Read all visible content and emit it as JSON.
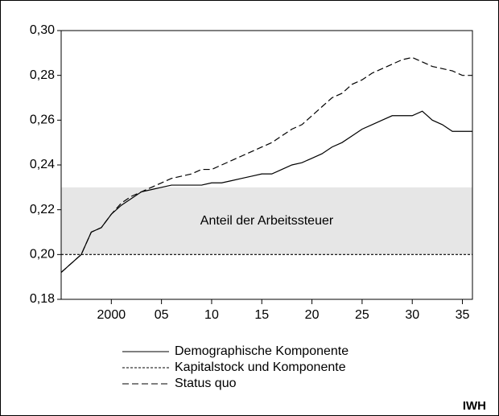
{
  "chart_data": {
    "type": "line",
    "x": [
      1995,
      1996,
      1997,
      1998,
      1999,
      2000,
      2001,
      2002,
      2003,
      2004,
      2005,
      2006,
      2007,
      2008,
      2009,
      2010,
      2011,
      2012,
      2013,
      2014,
      2015,
      2016,
      2017,
      2018,
      2019,
      2020,
      2021,
      2022,
      2023,
      2024,
      2025,
      2026,
      2027,
      2028,
      2029,
      2030,
      2031,
      2032,
      2033,
      2034,
      2035,
      2036
    ],
    "series": [
      {
        "name": "Demographische Komponente",
        "color": "#000000",
        "dash": "solid",
        "values": [
          0.192,
          0.196,
          0.2,
          0.21,
          0.212,
          0.218,
          0.222,
          0.225,
          0.228,
          0.229,
          0.23,
          0.231,
          0.231,
          0.231,
          0.231,
          0.232,
          0.232,
          0.233,
          0.234,
          0.235,
          0.236,
          0.236,
          0.238,
          0.24,
          0.241,
          0.243,
          0.245,
          0.248,
          0.25,
          0.253,
          0.256,
          0.258,
          0.26,
          0.262,
          0.262,
          0.262,
          0.264,
          0.26,
          0.258,
          0.255,
          0.255,
          0.255
        ]
      },
      {
        "name": "Kapitalstock und Komponente",
        "color": "#000000",
        "dash": "short",
        "values": [
          0.2,
          0.2,
          0.2,
          0.2,
          0.2,
          0.2,
          0.2,
          0.2,
          0.2,
          0.2,
          0.2,
          0.2,
          0.2,
          0.2,
          0.2,
          0.2,
          0.2,
          0.2,
          0.2,
          0.2,
          0.2,
          0.2,
          0.2,
          0.2,
          0.2,
          0.2,
          0.2,
          0.2,
          0.2,
          0.2,
          0.2,
          0.2,
          0.2,
          0.2,
          0.2,
          0.2,
          0.2,
          0.2,
          0.2,
          0.2,
          0.2,
          0.2
        ]
      },
      {
        "name": "Status quo",
        "color": "#000000",
        "dash": "long",
        "values": [
          0.192,
          0.196,
          0.2,
          0.21,
          0.212,
          0.218,
          0.223,
          0.226,
          0.228,
          0.23,
          0.232,
          0.234,
          0.235,
          0.236,
          0.238,
          0.238,
          0.24,
          0.242,
          0.244,
          0.246,
          0.248,
          0.25,
          0.253,
          0.256,
          0.258,
          0.262,
          0.266,
          0.27,
          0.272,
          0.276,
          0.278,
          0.281,
          0.283,
          0.285,
          0.287,
          0.288,
          0.286,
          0.284,
          0.283,
          0.282,
          0.28,
          0.28
        ]
      }
    ],
    "band": {
      "from": 0.2,
      "to": 0.23,
      "label": "Anteil der Arbeitssteuer",
      "color": "#e6e6e6"
    },
    "xlim": [
      1995,
      2036
    ],
    "xticks": [
      2000,
      {
        "value": 2005,
        "label": "05"
      },
      {
        "value": 2010,
        "label": "10"
      },
      {
        "value": 2015,
        "label": "15"
      },
      {
        "value": 2020,
        "label": "20"
      },
      {
        "value": 2025,
        "label": "25"
      },
      {
        "value": 2030,
        "label": "30"
      },
      {
        "value": 2035,
        "label": "35"
      }
    ],
    "ylim": [
      0.18,
      0.3
    ],
    "yticks": [
      {
        "value": 0.18,
        "label": "0,18"
      },
      {
        "value": 0.2,
        "label": "0,20"
      },
      {
        "value": 0.22,
        "label": "0,22"
      },
      {
        "value": 0.24,
        "label": "0,24"
      },
      {
        "value": 0.26,
        "label": "0,26"
      },
      {
        "value": 0.28,
        "label": "0,28"
      },
      {
        "value": 0.3,
        "label": "0,30"
      }
    ],
    "source": "IWH"
  }
}
